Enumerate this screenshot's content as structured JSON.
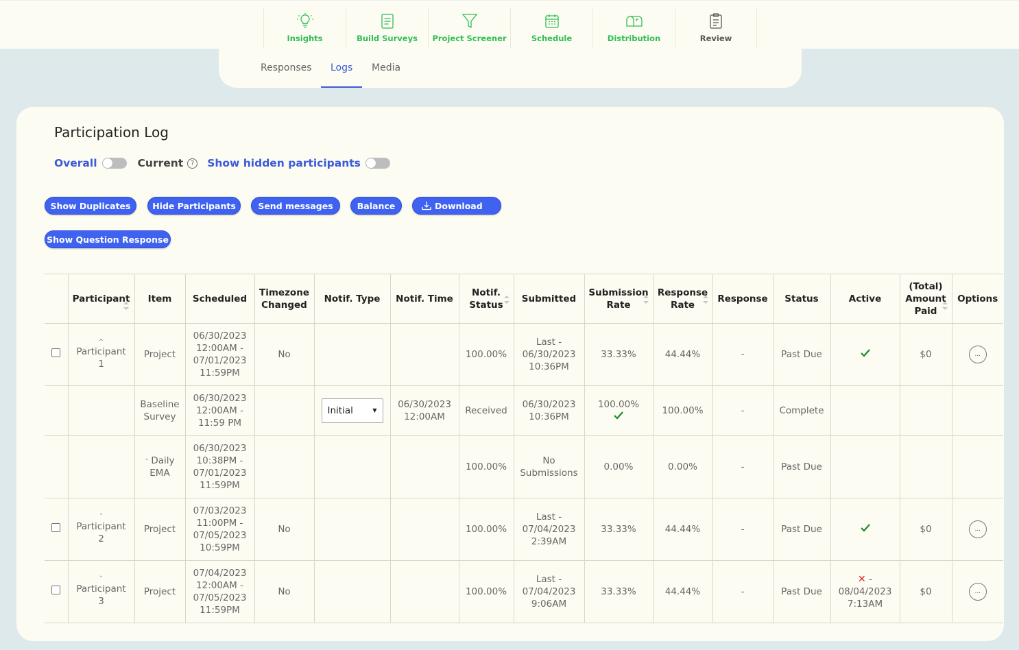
{
  "topnav": {
    "items": [
      {
        "label": "Insights",
        "icon": "lightbulb-icon"
      },
      {
        "label": "Build Surveys",
        "icon": "survey-document-icon"
      },
      {
        "label": "Project Screener",
        "icon": "filter-funnel-icon"
      },
      {
        "label": "Schedule",
        "icon": "calendar-icon"
      },
      {
        "label": "Distribution",
        "icon": "mailbox-icon"
      },
      {
        "label": "Review",
        "icon": "clipboard-icon"
      }
    ]
  },
  "subtabs": {
    "responses": "Responses",
    "logs": "Logs",
    "media": "Media",
    "active": "Logs"
  },
  "page": {
    "title": "Participation Log",
    "overall_label": "Overall",
    "current_label": "Current",
    "help_glyph": "?",
    "hidden_label": "Show hidden participants"
  },
  "buttons": {
    "show_duplicates": "Show Duplicates",
    "hide_participants": "Hide Participants",
    "send_messages": "Send messages",
    "balance": "Balance",
    "download": "Download",
    "show_question_response": "Show Question Response"
  },
  "colors": {
    "accent": "#3f63f0",
    "green": "#2fbd55",
    "check": "#1a8a2a",
    "error": "#e02020"
  },
  "table": {
    "headers": {
      "participant": "Participant",
      "item": "Item",
      "scheduled": "Scheduled",
      "timezone_1": "Timezone",
      "timezone_2": "Changed",
      "notif_type": "Notif. Type",
      "notif_time": "Notif. Time",
      "notif_status_1": "Notif.",
      "notif_status_2": "Status",
      "submitted": "Submitted",
      "submission_rate_1": "Submission",
      "submission_rate_2": "Rate",
      "response_rate_1": "Response",
      "response_rate_2": "Rate",
      "response": "Response",
      "status": "Status",
      "active": "Active",
      "amount_1": "(Total)",
      "amount_2": "Amount",
      "amount_3": "Paid",
      "options": "Options"
    },
    "rows": [
      {
        "chevron": "^",
        "participant_1": "Participant",
        "participant_2": "1",
        "item": "Project",
        "scheduled": [
          "06/30/2023",
          "12:00AM -",
          "07/01/2023",
          "11:59PM"
        ],
        "timezone": "No",
        "notif_status": "100.00%",
        "submitted": [
          "Last -",
          "06/30/2023",
          "10:36PM"
        ],
        "submission_rate": "33.33%",
        "response_rate": "44.44%",
        "response": "-",
        "status": "Past Due",
        "amount": "$0",
        "options": "..."
      },
      {
        "item_1": "Baseline",
        "item_2": "Survey",
        "scheduled": [
          "06/30/2023",
          "12:00AM -",
          "11:59 PM"
        ],
        "notif_type": "Initial",
        "notif_time": [
          "06/30/2023",
          "12:00AM"
        ],
        "notif_status": "Received",
        "submitted": [
          "06/30/2023",
          "10:36PM"
        ],
        "submission_rate": "100.00%",
        "response_rate": "100.00%",
        "response": "-",
        "status": "Complete"
      },
      {
        "item_chevron": "˅",
        "item_1": "Daily",
        "item_2": "EMA",
        "scheduled": [
          "06/30/2023",
          "10:38PM -",
          "07/01/2023",
          "11:59PM"
        ],
        "notif_status": "100.00%",
        "submitted": [
          "No",
          "Submissions"
        ],
        "submission_rate": "0.00%",
        "response_rate": "0.00%",
        "response": "-",
        "status": "Past Due"
      },
      {
        "chevron": "˅",
        "participant_1": "Participant",
        "participant_2": "2",
        "item": "Project",
        "scheduled": [
          "07/03/2023",
          "11:00PM -",
          "07/05/2023",
          "10:59PM"
        ],
        "timezone": "No",
        "notif_status": "100.00%",
        "submitted": [
          "Last -",
          "07/04/2023",
          "2:39AM"
        ],
        "submission_rate": "33.33%",
        "response_rate": "44.44%",
        "response": "-",
        "status": "Past Due",
        "amount": "$0",
        "options": "..."
      },
      {
        "chevron": "˅",
        "participant_1": "Participant",
        "participant_2": "3",
        "item": "Project",
        "scheduled": [
          "07/04/2023",
          "12:00AM -",
          "07/05/2023",
          "11:59PM"
        ],
        "timezone": "No",
        "notif_status": "100.00%",
        "submitted": [
          "Last -",
          "07/04/2023",
          "9:06AM"
        ],
        "submission_rate": "33.33%",
        "response_rate": "44.44%",
        "response": "-",
        "status": "Past Due",
        "active_x": "✕",
        "active_1": " -",
        "active_2": "08/04/2023",
        "active_3": "7:13AM",
        "amount": "$0",
        "options": "..."
      }
    ]
  }
}
